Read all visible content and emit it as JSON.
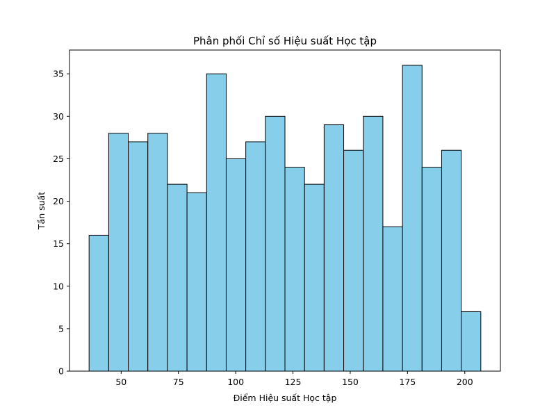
{
  "chart_data": {
    "type": "bar",
    "title": "Phân phối Chỉ số Hiệu suất Học tập",
    "xlabel": "Điểm Hiệu suất Học tập",
    "ylabel": "Tần suất",
    "bin_edges": [
      36,
      44.55,
      53.1,
      61.65,
      70.2,
      78.75,
      87.3,
      95.85,
      104.4,
      112.95,
      121.5,
      130.05,
      138.6,
      147.15,
      155.7,
      164.25,
      172.8,
      181.35,
      189.9,
      198.45,
      207
    ],
    "values": [
      16,
      28,
      27,
      28,
      22,
      21,
      35,
      25,
      27,
      30,
      24,
      22,
      29,
      26,
      30,
      17,
      36,
      24,
      26,
      7
    ],
    "xlim": [
      27.45,
      215.55
    ],
    "ylim": [
      0,
      37.8
    ],
    "xticks": [
      50,
      75,
      100,
      125,
      150,
      175,
      200
    ],
    "yticks": [
      0,
      5,
      10,
      15,
      20,
      25,
      30,
      35
    ],
    "bar_color": "#87ceeb",
    "edge_color": "#000000",
    "grid": false,
    "legend": "none"
  }
}
